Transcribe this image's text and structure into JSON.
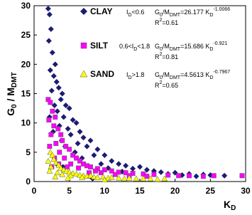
{
  "chart_data": {
    "type": "scatter",
    "y_label": [
      "G",
      "0",
      " / M",
      "DMT"
    ],
    "x_label": [
      "K",
      "D"
    ],
    "xlim": [
      0,
      30
    ],
    "ylim": [
      0,
      30
    ],
    "xticks": [
      0,
      5,
      10,
      15,
      20,
      25,
      30
    ],
    "yticks": [
      0,
      5,
      10,
      15,
      20,
      25,
      30
    ],
    "series": [
      {
        "name": "CLAY",
        "marker": "diamond",
        "color": "#1c1c72",
        "condition": [
          "I",
          "D",
          "<0.6"
        ],
        "equation": [
          "G",
          "0",
          "/M",
          "DMT",
          "=26.177 K",
          "D",
          "-1.0066"
        ],
        "r2": [
          "R",
          "2",
          "=0.61"
        ],
        "x": [
          2.0,
          2.2,
          2.4,
          2.1,
          2.6,
          3.0,
          2.3,
          2.8,
          3.2,
          3.5,
          2.5,
          4.0,
          3.8,
          2.9,
          4.5,
          5.0,
          3.3,
          2.2,
          4.2,
          5.5,
          6.0,
          3.6,
          4.8,
          2.7,
          6.5,
          5.2,
          7.0,
          3.9,
          8.0,
          6.2,
          4.4,
          7.5,
          9.0,
          5.8,
          8.5,
          10.0,
          6.8,
          11.0,
          9.5,
          12.0,
          13.0,
          15.0,
          10.5,
          14.0,
          16.0,
          17.0,
          12.5,
          18.0,
          20.0,
          19.0,
          22.0,
          21.0,
          24.0,
          25.0,
          27.0,
          23.0,
          8.3,
          3.2,
          4.1
        ],
        "values": [
          29.5,
          28.5,
          26,
          24,
          22,
          20,
          19,
          18,
          17,
          16,
          15.5,
          15,
          14,
          13,
          13,
          12.5,
          12,
          11,
          11,
          10.5,
          10,
          9.5,
          9,
          8.5,
          8.5,
          8,
          7.5,
          7,
          7,
          6.5,
          6,
          6,
          5.5,
          5,
          4.5,
          4.5,
          4,
          3.5,
          3,
          3,
          2.7,
          2.5,
          2.3,
          2.2,
          2,
          1.8,
          1.7,
          1.6,
          1.5,
          1.3,
          1.3,
          1.1,
          1.2,
          1.1,
          1.0,
          0.9,
          0.5,
          3,
          2.5
        ]
      },
      {
        "name": "SILT",
        "marker": "square",
        "color": "#ff00ff",
        "condition": [
          "0.6<I",
          "D",
          "<1.8"
        ],
        "equation": [
          "G",
          "0",
          "/M",
          "DMT",
          "=15.686 K",
          "D",
          "-0.921"
        ],
        "r2": [
          "R",
          "2",
          "=0.81"
        ],
        "x": [
          2.0,
          2.3,
          2.6,
          2.1,
          3.0,
          2.8,
          3.4,
          2.4,
          3.8,
          4.0,
          3.1,
          4.5,
          2.2,
          5.0,
          3.6,
          5.5,
          4.3,
          6.0,
          2.9,
          6.5,
          5.2,
          7.0,
          7.5,
          3.5,
          8.0,
          6.3,
          9.0,
          4.7,
          10.0,
          8.7,
          11.0,
          12.0,
          9.5,
          13.0,
          14.0,
          11.5,
          15.5,
          17.0,
          13.5,
          19.0,
          20.5,
          22.0,
          24.0,
          25.5,
          29.5,
          16.0,
          2.5,
          7.8
        ],
        "values": [
          14,
          13.5,
          12,
          10.5,
          11,
          9.5,
          9,
          8,
          8,
          7,
          6.5,
          6,
          6,
          5.5,
          5,
          4.5,
          4,
          4,
          4,
          3.5,
          3,
          3,
          2.7,
          3,
          2.5,
          2.3,
          2.2,
          2.5,
          2,
          1.8,
          1.8,
          1.6,
          1.5,
          1.5,
          1.4,
          1.2,
          1.3,
          1.2,
          1,
          1.1,
          1,
          1,
          0.9,
          1,
          1,
          0.9,
          2.5,
          1.5
        ]
      },
      {
        "name": "SAND",
        "marker": "triangle",
        "color": "#ffff00",
        "condition": [
          "I",
          "D",
          ">1.8"
        ],
        "equation": [
          "G",
          "0",
          "/M",
          "DMT",
          "=4.5613 K",
          "D",
          "-0.7967"
        ],
        "r2": [
          "R",
          "2",
          "=0.65"
        ],
        "x": [
          2.3,
          2.6,
          2.0,
          2.8,
          3.1,
          2.4,
          3.5,
          3.8,
          2.2,
          4.2,
          4.6,
          3.3,
          5.0,
          5.5,
          4.0,
          6.0,
          6.5,
          5.2,
          7.0,
          7.5,
          8.0,
          6.8,
          8.5,
          9.0,
          9.8,
          10.5,
          11.0,
          12.0,
          12.8,
          13.5,
          14.5,
          15.5,
          16.5,
          17.5,
          18.5,
          3.0,
          4.8,
          10.0
        ],
        "values": [
          5,
          4.5,
          3.5,
          3.8,
          3.2,
          2.5,
          2.8,
          2.3,
          1.8,
          2,
          1.8,
          1.5,
          1.6,
          1.4,
          1.2,
          1.3,
          1.1,
          1,
          1,
          0.9,
          1,
          0.7,
          0.8,
          0.7,
          0.8,
          0.6,
          0.7,
          0.6,
          0.5,
          0.6,
          0.5,
          0.5,
          0.5,
          0.4,
          0.5,
          0.8,
          0.6,
          0.3
        ]
      }
    ]
  }
}
